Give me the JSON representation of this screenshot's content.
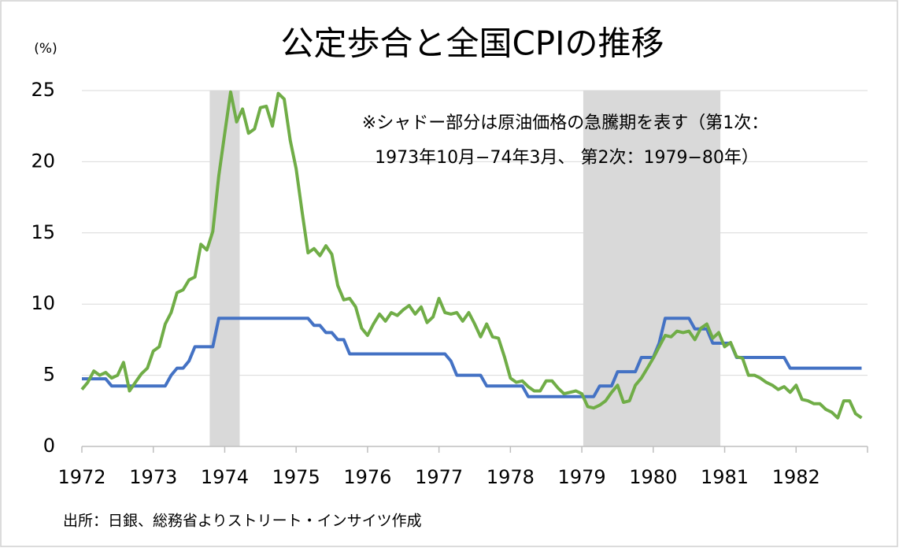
{
  "chart_data": {
    "type": "line",
    "title": "公定歩合と全国CPIの推移",
    "y_unit_label": "(%)",
    "annotation": [
      "※シャドー部分は原油価格の急騰期を表す（第1次：",
      "1973年10月−74年3月、 第2次：1979−80年）"
    ],
    "source": "出所：日銀、総務省よりストリート・インサイツ作成",
    "xlim": [
      1972,
      1983
    ],
    "xticks": [
      1972,
      1973,
      1974,
      1975,
      1976,
      1977,
      1978,
      1979,
      1980,
      1981,
      1982
    ],
    "ylim": [
      0,
      25
    ],
    "yticks": [
      0,
      5,
      10,
      15,
      20,
      25
    ],
    "grid": true,
    "shaded_spans": [
      [
        1973.79,
        1974.21
      ],
      [
        1979.02,
        1980.94
      ]
    ],
    "shade_color": "#d9d9d9",
    "x": [
      1972,
      1972.083,
      1972.167,
      1972.25,
      1972.333,
      1972.417,
      1972.5,
      1972.583,
      1972.667,
      1972.75,
      1972.833,
      1972.917,
      1973,
      1973.083,
      1973.167,
      1973.25,
      1973.333,
      1973.417,
      1973.5,
      1973.583,
      1973.667,
      1973.75,
      1973.833,
      1973.917,
      1974,
      1974.083,
      1974.167,
      1974.25,
      1974.333,
      1974.417,
      1974.5,
      1974.583,
      1974.667,
      1974.75,
      1974.833,
      1974.917,
      1975,
      1975.083,
      1975.167,
      1975.25,
      1975.333,
      1975.417,
      1975.5,
      1975.583,
      1975.667,
      1975.75,
      1975.833,
      1975.917,
      1976,
      1976.083,
      1976.167,
      1976.25,
      1976.333,
      1976.417,
      1976.5,
      1976.583,
      1976.667,
      1976.75,
      1976.833,
      1976.917,
      1977,
      1977.083,
      1977.167,
      1977.25,
      1977.333,
      1977.417,
      1977.5,
      1977.583,
      1977.667,
      1977.75,
      1977.833,
      1977.917,
      1978,
      1978.083,
      1978.167,
      1978.25,
      1978.333,
      1978.417,
      1978.5,
      1978.583,
      1978.667,
      1978.75,
      1978.833,
      1978.917,
      1979,
      1979.083,
      1979.167,
      1979.25,
      1979.333,
      1979.417,
      1979.5,
      1979.583,
      1979.667,
      1979.75,
      1979.833,
      1979.917,
      1980,
      1980.083,
      1980.167,
      1980.25,
      1980.333,
      1980.417,
      1980.5,
      1980.583,
      1980.667,
      1980.75,
      1980.833,
      1980.917,
      1981,
      1981.083,
      1981.167,
      1981.25,
      1981.333,
      1981.417,
      1981.5,
      1981.583,
      1981.667,
      1981.75,
      1981.833,
      1981.917,
      1982,
      1982.083,
      1982.167,
      1982.25,
      1982.333,
      1982.417,
      1982.5,
      1982.583,
      1982.667,
      1982.75,
      1982.833,
      1982.917
    ],
    "series": [
      {
        "color": "#4472c4",
        "values": [
          4.75,
          4.75,
          4.75,
          4.75,
          4.75,
          4.25,
          4.25,
          4.25,
          4.25,
          4.25,
          4.25,
          4.25,
          4.25,
          4.25,
          4.25,
          5.0,
          5.5,
          5.5,
          6.0,
          7.0,
          7.0,
          7.0,
          7.0,
          9.0,
          9.0,
          9.0,
          9.0,
          9.0,
          9.0,
          9.0,
          9.0,
          9.0,
          9.0,
          9.0,
          9.0,
          9.0,
          9.0,
          9.0,
          9.0,
          8.5,
          8.5,
          8.0,
          8.0,
          7.5,
          7.5,
          6.5,
          6.5,
          6.5,
          6.5,
          6.5,
          6.5,
          6.5,
          6.5,
          6.5,
          6.5,
          6.5,
          6.5,
          6.5,
          6.5,
          6.5,
          6.5,
          6.5,
          6.0,
          5.0,
          5.0,
          5.0,
          5.0,
          5.0,
          4.25,
          4.25,
          4.25,
          4.25,
          4.25,
          4.25,
          4.25,
          3.5,
          3.5,
          3.5,
          3.5,
          3.5,
          3.5,
          3.5,
          3.5,
          3.5,
          3.5,
          3.5,
          3.5,
          4.25,
          4.25,
          4.25,
          5.25,
          5.25,
          5.25,
          5.25,
          6.25,
          6.25,
          6.25,
          7.25,
          9.0,
          9.0,
          9.0,
          9.0,
          9.0,
          8.25,
          8.25,
          8.25,
          7.25,
          7.25,
          7.25,
          7.25,
          6.25,
          6.25,
          6.25,
          6.25,
          6.25,
          6.25,
          6.25,
          6.25,
          6.25,
          5.5,
          5.5,
          5.5,
          5.5,
          5.5,
          5.5,
          5.5,
          5.5,
          5.5,
          5.5,
          5.5,
          5.5,
          5.5
        ]
      },
      {
        "color": "#70ad47",
        "values": [
          4.0,
          4.5,
          5.3,
          5.0,
          5.2,
          4.8,
          5.0,
          5.9,
          3.9,
          4.5,
          5.1,
          5.5,
          6.7,
          7.0,
          8.6,
          9.4,
          10.8,
          11.0,
          11.7,
          11.9,
          14.2,
          13.8,
          15.1,
          19.0,
          22.0,
          24.9,
          22.8,
          23.7,
          22.0,
          22.3,
          23.8,
          23.9,
          22.5,
          24.8,
          24.4,
          21.5,
          19.5,
          16.5,
          13.6,
          13.9,
          13.4,
          14.1,
          13.5,
          11.3,
          10.3,
          10.4,
          9.8,
          8.3,
          7.8,
          8.6,
          9.3,
          8.8,
          9.4,
          9.2,
          9.6,
          9.9,
          9.3,
          9.8,
          8.7,
          9.1,
          10.4,
          9.4,
          9.3,
          9.4,
          8.8,
          9.4,
          8.6,
          7.7,
          8.6,
          7.7,
          7.6,
          6.3,
          4.8,
          4.5,
          4.6,
          4.2,
          3.9,
          3.9,
          4.6,
          4.6,
          4.1,
          3.7,
          3.8,
          3.9,
          3.7,
          2.8,
          2.7,
          2.9,
          3.2,
          3.8,
          4.3,
          3.1,
          3.2,
          4.3,
          4.8,
          5.5,
          6.2,
          7.0,
          7.8,
          7.7,
          8.1,
          8.0,
          8.1,
          7.5,
          8.3,
          8.6,
          7.6,
          8.0,
          7.0,
          7.3,
          6.3,
          6.2,
          5.0,
          5.0,
          4.8,
          4.5,
          4.3,
          4.0,
          4.2,
          3.8,
          4.3,
          3.3,
          3.2,
          3.0,
          3.0,
          2.6,
          2.4,
          2.0,
          3.2,
          3.2,
          2.3,
          2.0
        ]
      }
    ]
  }
}
